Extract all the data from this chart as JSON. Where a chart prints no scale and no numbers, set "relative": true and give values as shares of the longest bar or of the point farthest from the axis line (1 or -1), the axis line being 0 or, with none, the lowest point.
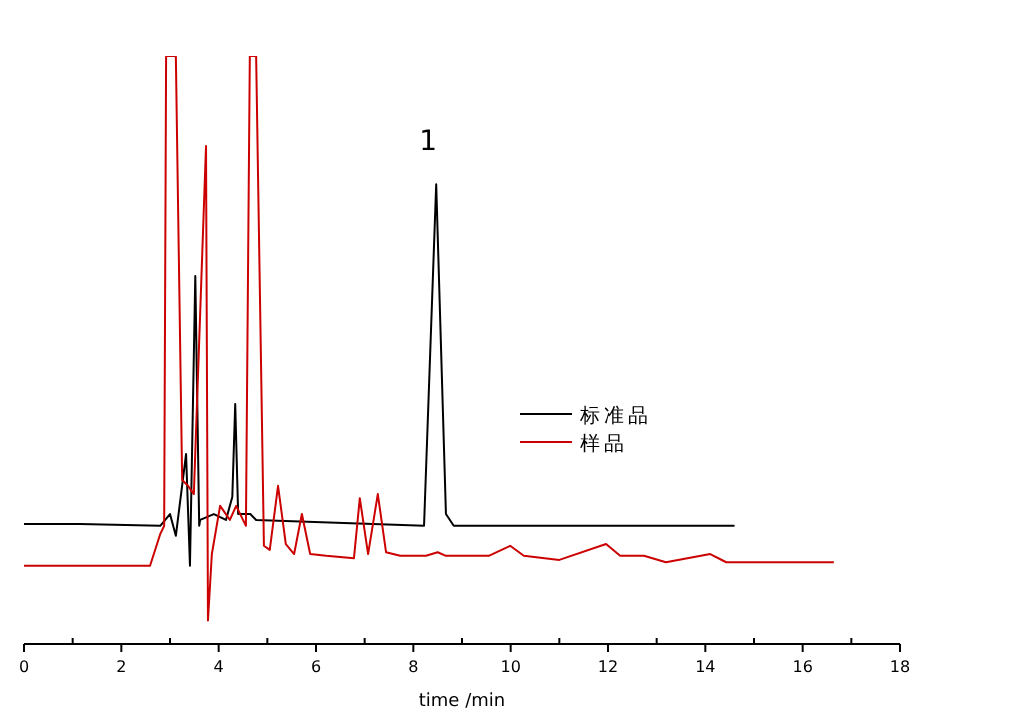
{
  "chart_data": {
    "type": "line",
    "relative": true,
    "xlabel": "time /min",
    "xlim": [
      0,
      18
    ],
    "xticks": [
      0,
      {
        "value": 1,
        "label": null
      },
      2,
      {
        "value": 3,
        "label": null
      },
      4,
      {
        "value": 5,
        "label": null
      },
      6,
      {
        "value": 7,
        "label": null
      },
      8,
      {
        "value": 9,
        "label": null
      },
      10,
      {
        "value": 11,
        "label": null
      },
      12,
      {
        "value": 13,
        "label": null
      },
      14,
      {
        "value": 15,
        "label": null
      },
      16,
      {
        "value": 17,
        "label": null
      },
      18
    ],
    "legend": "right",
    "annotations": [
      {
        "text": "1",
        "x": 8.47,
        "y": 0.782
      }
    ],
    "series": [
      {
        "name": "标准品",
        "color": "#000000",
        "x": [
          0,
          1.15,
          2.8,
          3.0,
          3.12,
          3.33,
          3.41,
          3.52,
          3.6,
          3.62,
          3.9,
          4.15,
          4.28,
          4.34,
          4.4,
          4.65,
          4.77,
          8.22,
          8.47,
          8.67,
          8.83,
          14.6
        ],
        "values": [
          0.204,
          0.204,
          0.201,
          0.221,
          0.184,
          0.323,
          0.133,
          0.626,
          0.201,
          0.211,
          0.221,
          0.211,
          0.25,
          0.408,
          0.221,
          0.221,
          0.211,
          0.201,
          0.782,
          0.221,
          0.201,
          0.201
        ]
      },
      {
        "name": "样品",
        "color": "#cc0000",
        "x": [
          0,
          2.59,
          2.8,
          2.88,
          2.92,
          3.12,
          3.25,
          3.37,
          3.49,
          3.74,
          3.78,
          3.86,
          4.03,
          4.23,
          4.36,
          4.56,
          4.64,
          4.77,
          4.93,
          5.05,
          5.22,
          5.38,
          5.55,
          5.71,
          5.88,
          6.21,
          6.78,
          6.9,
          7.07,
          7.27,
          7.44,
          7.73,
          8.26,
          8.5,
          8.67,
          9.55,
          9.99,
          10.27,
          11.0,
          11.96,
          12.25,
          12.74,
          13.19,
          14.1,
          14.43,
          15.95,
          16.64
        ],
        "values": [
          0.133,
          0.133,
          0.187,
          0.201,
          1,
          1,
          0.279,
          0.269,
          0.255,
          0.847,
          0.04,
          0.153,
          0.235,
          0.211,
          0.235,
          0.201,
          1,
          1,
          0.167,
          0.16,
          0.269,
          0.17,
          0.153,
          0.221,
          0.153,
          0.15,
          0.146,
          0.248,
          0.153,
          0.255,
          0.156,
          0.15,
          0.15,
          0.156,
          0.15,
          0.15,
          0.167,
          0.15,
          0.143,
          0.17,
          0.15,
          0.15,
          0.139,
          0.153,
          0.139,
          0.139,
          0.139
        ]
      }
    ]
  }
}
